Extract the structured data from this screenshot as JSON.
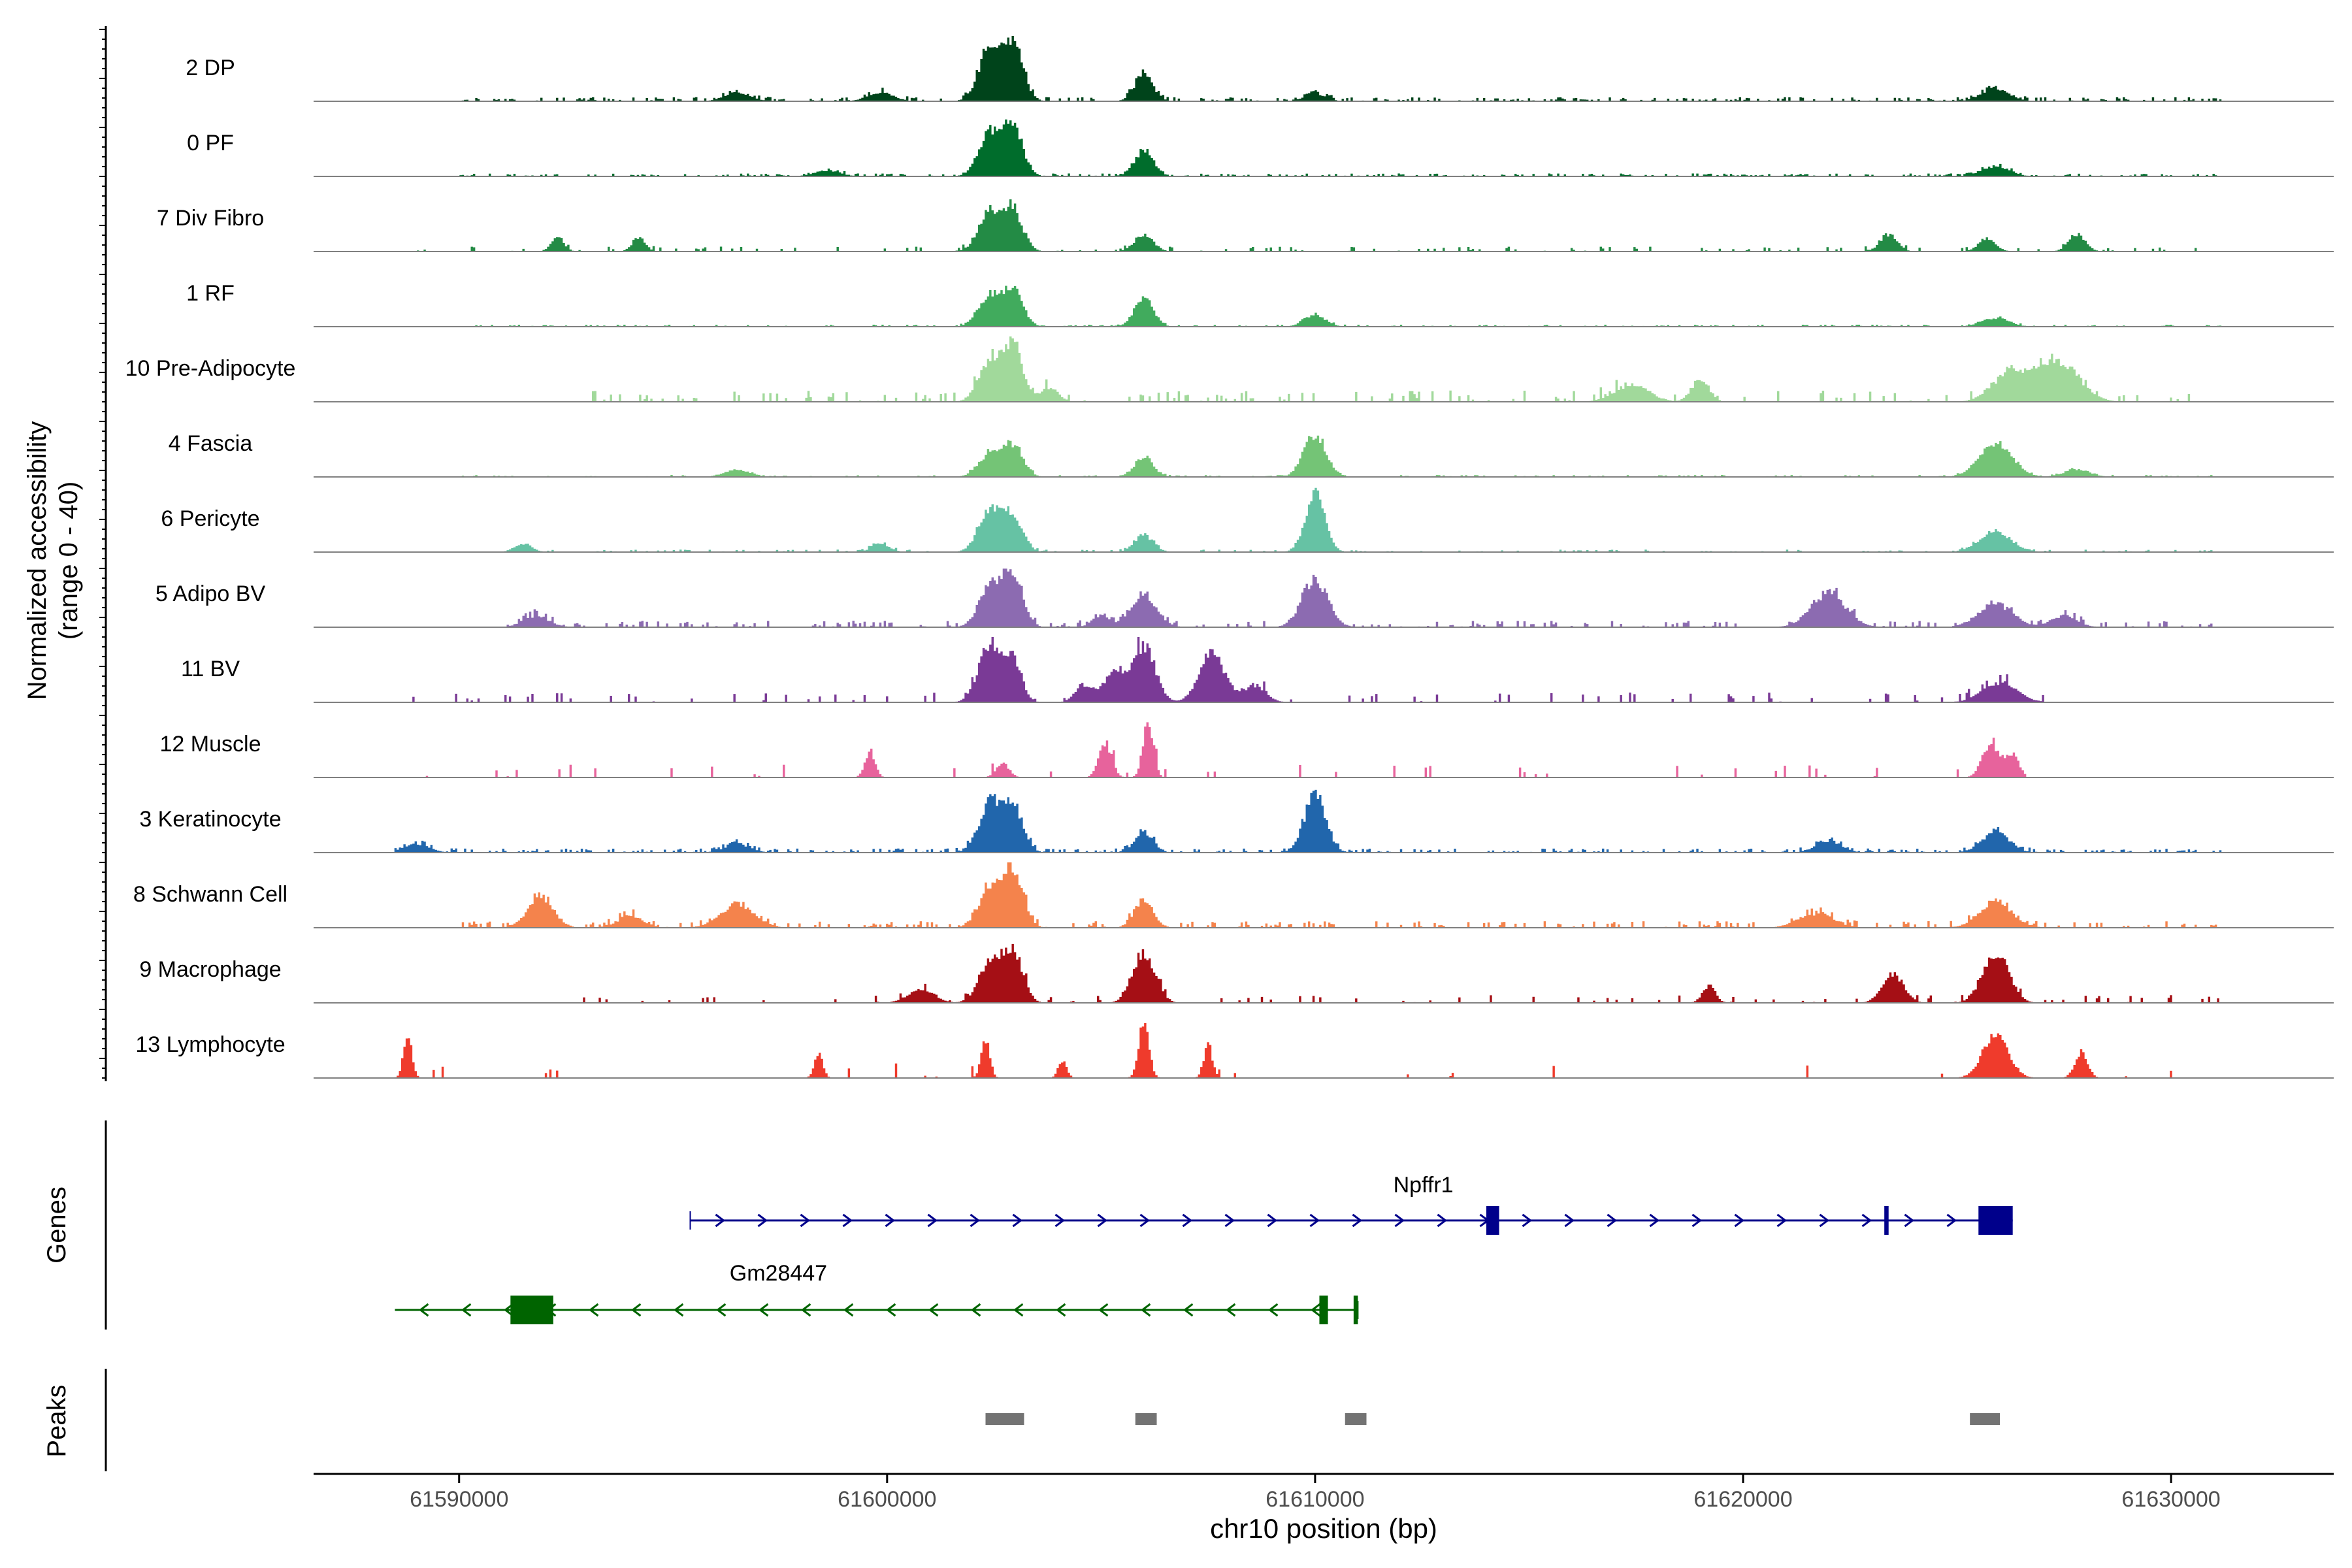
{
  "chart_data": {
    "type": "area",
    "y_label_line1": "Normalized accessibility",
    "y_label_line2": "(range 0 - 40)",
    "ylim": [
      0,
      40
    ],
    "xlabel": "chr10 position (bp)",
    "xlim": [
      61586600,
      61633800
    ],
    "x_ticks": [
      61590000,
      61600000,
      61610000,
      61620000,
      61630000
    ],
    "x_tick_labels": [
      "61590000",
      "61600000",
      "61610000",
      "61620000",
      "61630000"
    ],
    "tracks": [
      {
        "name": "2 DP",
        "color": "#00441b",
        "peaks": [
          [
            61602400,
            36,
            260
          ],
          [
            61602950,
            38,
            230
          ],
          [
            61606000,
            18,
            220
          ],
          [
            61610000,
            5,
            250
          ],
          [
            61625900,
            9,
            320
          ],
          [
            61599850,
            6,
            300
          ],
          [
            61596500,
            6,
            300
          ]
        ],
        "noise": 2.5,
        "noise_density": 0.45,
        "range": [
          61590000,
          61631200
        ]
      },
      {
        "name": "0 PF",
        "color": "#006d2c",
        "peaks": [
          [
            61602400,
            30,
            260
          ],
          [
            61602950,
            33,
            230
          ],
          [
            61606000,
            18,
            220
          ],
          [
            61625900,
            7,
            320
          ],
          [
            61598600,
            4,
            300
          ]
        ],
        "noise": 1.8,
        "noise_density": 0.4,
        "range": [
          61590000,
          61631200
        ]
      },
      {
        "name": "7 Div Fibro",
        "color": "#238b45",
        "peaks": [
          [
            61602400,
            27,
            260
          ],
          [
            61602950,
            27,
            230
          ],
          [
            61606000,
            12,
            220
          ],
          [
            61623400,
            12,
            200
          ],
          [
            61627800,
            12,
            200
          ],
          [
            61594200,
            10,
            150
          ],
          [
            61592300,
            10,
            150
          ],
          [
            61625700,
            9,
            200
          ]
        ],
        "noise": 3,
        "noise_density": 0.18,
        "range": [
          61589000,
          61631200
        ]
      },
      {
        "name": "1 RF",
        "color": "#41ab5d",
        "peaks": [
          [
            61602400,
            22,
            260
          ],
          [
            61602950,
            24,
            230
          ],
          [
            61606000,
            20,
            220
          ],
          [
            61610000,
            8,
            250
          ],
          [
            61625900,
            6,
            320
          ]
        ],
        "noise": 1.2,
        "noise_density": 0.3,
        "range": [
          61590000,
          61631200
        ]
      },
      {
        "name": "10 Pre-Adipocyte",
        "color": "#a1d99b",
        "peaks": [
          [
            61602400,
            28,
            260
          ],
          [
            61602950,
            40,
            230
          ],
          [
            61627300,
            30,
            500
          ],
          [
            61626200,
            18,
            400
          ],
          [
            61619000,
            16,
            200
          ],
          [
            61617400,
            12,
            400
          ],
          [
            61603800,
            10,
            200
          ]
        ],
        "noise": 7,
        "noise_density": 0.22,
        "range": [
          61593000,
          61630600
        ]
      },
      {
        "name": "4 Fascia",
        "color": "#74c476",
        "peaks": [
          [
            61602400,
            16,
            260
          ],
          [
            61602950,
            22,
            230
          ],
          [
            61606000,
            14,
            220
          ],
          [
            61610000,
            30,
            260
          ],
          [
            61625900,
            24,
            380
          ],
          [
            61596500,
            5,
            300
          ],
          [
            61627800,
            5,
            300
          ]
        ],
        "noise": 1.2,
        "noise_density": 0.3,
        "range": [
          61590000,
          61631200
        ]
      },
      {
        "name": "6 Pericyte",
        "color": "#66c2a4",
        "peaks": [
          [
            61602400,
            30,
            260
          ],
          [
            61602950,
            24,
            230
          ],
          [
            61610000,
            40,
            230
          ],
          [
            61606000,
            12,
            220
          ],
          [
            61625900,
            14,
            380
          ],
          [
            61599850,
            6,
            200
          ],
          [
            61591500,
            6,
            200
          ]
        ],
        "noise": 1.5,
        "noise_density": 0.3,
        "range": [
          61591000,
          61631200
        ]
      },
      {
        "name": "5 Adipo BV",
        "color": "#8c6bb1",
        "peaks": [
          [
            61602400,
            28,
            260
          ],
          [
            61602950,
            36,
            230
          ],
          [
            61606000,
            22,
            300
          ],
          [
            61610000,
            34,
            300
          ],
          [
            61622000,
            24,
            400
          ],
          [
            61625900,
            16,
            400
          ],
          [
            61627500,
            8,
            300
          ],
          [
            61605000,
            8,
            200
          ],
          [
            61591800,
            8,
            300
          ]
        ],
        "noise": 4,
        "noise_density": 0.3,
        "range": [
          61591000,
          61631200
        ]
      },
      {
        "name": "11 BV",
        "color": "#7a3a96",
        "peaks": [
          [
            61602400,
            40,
            260
          ],
          [
            61602950,
            30,
            200
          ],
          [
            61606000,
            40,
            260
          ],
          [
            61607600,
            34,
            300
          ],
          [
            61605300,
            20,
            250
          ],
          [
            61626000,
            14,
            400
          ],
          [
            61608600,
            12,
            250
          ],
          [
            61604600,
            12,
            200
          ]
        ],
        "noise": 6,
        "noise_density": 0.12,
        "range": [
          61588800,
          61627800
        ]
      },
      {
        "name": "12 Muscle",
        "color": "#e7639c",
        "peaks": [
          [
            61606100,
            40,
            120
          ],
          [
            61605100,
            24,
            150
          ],
          [
            61599600,
            18,
            120
          ],
          [
            61625800,
            24,
            200
          ],
          [
            61626300,
            16,
            150
          ],
          [
            61602700,
            10,
            150
          ]
        ],
        "noise": 8,
        "noise_density": 0.05,
        "range": [
          61589100,
          61626600
        ]
      },
      {
        "name": "3 Keratinocyte",
        "color": "#2166ac",
        "peaks": [
          [
            61602400,
            34,
            260
          ],
          [
            61602950,
            32,
            230
          ],
          [
            61610000,
            40,
            250
          ],
          [
            61606000,
            14,
            220
          ],
          [
            61625900,
            14,
            320
          ],
          [
            61622000,
            8,
            300
          ],
          [
            61596500,
            6,
            300
          ],
          [
            61589000,
            6,
            300
          ]
        ],
        "noise": 2.5,
        "noise_density": 0.4,
        "range": [
          61588500,
          61631200
        ]
      },
      {
        "name": "8 Schwann Cell",
        "color": "#f4834c",
        "peaks": [
          [
            61602400,
            28,
            260
          ],
          [
            61602950,
            40,
            230
          ],
          [
            61606000,
            20,
            220
          ],
          [
            61591900,
            22,
            300
          ],
          [
            61596500,
            16,
            400
          ],
          [
            61625900,
            18,
            380
          ],
          [
            61621700,
            10,
            400
          ],
          [
            61594000,
            8,
            300
          ]
        ],
        "noise": 4,
        "noise_density": 0.3,
        "range": [
          61590000,
          61631200
        ]
      },
      {
        "name": "9 Macrophage",
        "color": "#a50f15",
        "peaks": [
          [
            61602400,
            28,
            260
          ],
          [
            61602950,
            34,
            230
          ],
          [
            61606000,
            36,
            260
          ],
          [
            61625900,
            36,
            300
          ],
          [
            61623500,
            20,
            250
          ],
          [
            61619200,
            12,
            150
          ],
          [
            61600800,
            10,
            300
          ]
        ],
        "noise": 5,
        "noise_density": 0.12,
        "range": [
          61592800,
          61631200
        ]
      },
      {
        "name": "13 Lymphocyte",
        "color": "#ef3b2c",
        "peaks": [
          [
            61606000,
            40,
            120
          ],
          [
            61588800,
            28,
            100
          ],
          [
            61607500,
            24,
            100
          ],
          [
            61602300,
            28,
            100
          ],
          [
            61625900,
            30,
            300
          ],
          [
            61627900,
            18,
            150
          ],
          [
            61598400,
            16,
            100
          ],
          [
            61604100,
            12,
            100
          ]
        ],
        "noise": 9,
        "noise_density": 0.04,
        "range": [
          61588500,
          61631200
        ]
      }
    ],
    "genes_label": "Genes",
    "genes": [
      {
        "name": "Npffr1",
        "strand": "+",
        "color": "#00008b",
        "start": 61595400,
        "end": 61626300,
        "exons": [
          [
            61614000,
            61614300
          ],
          [
            61623300,
            61623400
          ],
          [
            61625500,
            61626300
          ]
        ]
      },
      {
        "name": "Gm28447",
        "strand": "-",
        "color": "#006400",
        "start": 61588500,
        "end": 61611000,
        "exons": [
          [
            61591200,
            61592200
          ],
          [
            61610100,
            61610300
          ],
          [
            61610900,
            61611000
          ]
        ]
      }
    ],
    "peaks_label": "Peaks",
    "peak_regions": [
      [
        61602300,
        61603200
      ],
      [
        61605800,
        61606300
      ],
      [
        61610700,
        61611200
      ],
      [
        61625300,
        61626000
      ]
    ]
  }
}
